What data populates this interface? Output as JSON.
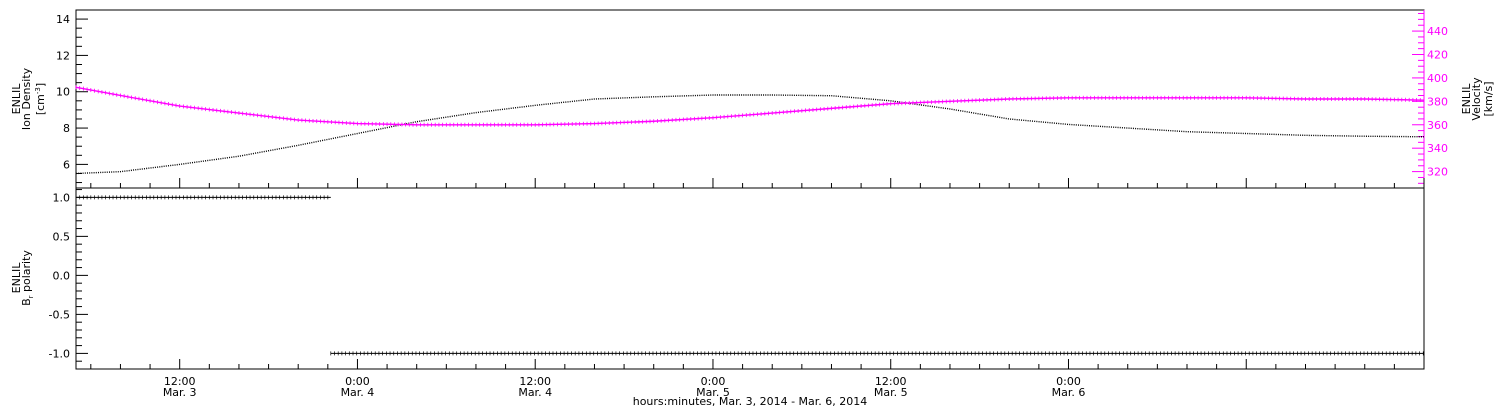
{
  "colors": {
    "frame": "#000000",
    "density_series": "#000000",
    "velocity_series": "#ff00ff",
    "polarity_series": "#000000",
    "background": "#ffffff"
  },
  "chart_data": [
    {
      "type": "line",
      "panel": "top",
      "xlabel": "hours:minutes, Mar.  3, 2014 - Mar.  6, 2014",
      "x_unit": "hours since Mar. 3, 0:00",
      "xlim": [
        5,
        96
      ],
      "x_ticks": [
        {
          "x": 12,
          "time": "12:00",
          "date": "Mar. 3"
        },
        {
          "x": 24,
          "time": "0:00",
          "date": "Mar. 4"
        },
        {
          "x": 36,
          "time": "12:00",
          "date": "Mar. 4"
        },
        {
          "x": 48,
          "time": "0:00",
          "date": "Mar. 5"
        },
        {
          "x": 60,
          "time": "12:00",
          "date": "Mar. 5"
        },
        {
          "x": 72,
          "time": "0:00",
          "date": "Mar. 6"
        }
      ],
      "left_axis": {
        "label_line1": "ENLIL",
        "label_line2": "Ion Density",
        "unit_base": "[cm",
        "unit_sup": "-3",
        "unit_end": "]",
        "ylim": [
          4.7,
          14.5
        ],
        "ticks": [
          "6",
          "8",
          "10",
          "12",
          "14"
        ],
        "tick_values": [
          6,
          8,
          10,
          12,
          14
        ]
      },
      "right_axis": {
        "label_line1": "ENLIL",
        "label_line2": "Velocity",
        "unit": "[km/s]",
        "ylim": [
          306,
          458
        ],
        "ticks": [
          "320",
          "340",
          "360",
          "380",
          "400",
          "420",
          "440"
        ],
        "tick_values": [
          320,
          340,
          360,
          380,
          400,
          420,
          440
        ]
      },
      "series": [
        {
          "axis": "left",
          "x": [
            5,
            8,
            12,
            16,
            20,
            24,
            28,
            32,
            36,
            40,
            44,
            48,
            52,
            56,
            60,
            64,
            68,
            72,
            76,
            80,
            84,
            88,
            92,
            96
          ],
          "values": [
            5.5,
            5.6,
            6.0,
            6.45,
            7.05,
            7.7,
            8.35,
            8.85,
            9.25,
            9.6,
            9.72,
            9.82,
            9.82,
            9.78,
            9.5,
            9.05,
            8.5,
            8.2,
            8.0,
            7.8,
            7.7,
            7.6,
            7.55,
            7.52
          ]
        },
        {
          "axis": "right",
          "x": [
            5,
            8,
            12,
            16,
            20,
            24,
            28,
            32,
            36,
            40,
            44,
            48,
            52,
            56,
            60,
            64,
            68,
            72,
            76,
            80,
            84,
            88,
            92,
            96
          ],
          "values": [
            392,
            385,
            376,
            370,
            364,
            361,
            360,
            360,
            360,
            361,
            363,
            366,
            370,
            374,
            378,
            380,
            382,
            383,
            383,
            383,
            383,
            382,
            382,
            381
          ]
        }
      ]
    },
    {
      "type": "scatter",
      "panel": "bottom",
      "xlim": [
        5,
        96
      ],
      "y_axis": {
        "label_line1": "ENLIL",
        "label_base": "B",
        "label_sub": "r",
        "label_end": " polarity",
        "ylim": [
          -1.2,
          1.12
        ],
        "ticks": [
          "-1.0",
          "-0.5",
          "0.0",
          "0.5",
          "1.0"
        ],
        "tick_values": [
          -1.0,
          -0.5,
          0.0,
          0.5,
          1.0
        ]
      },
      "series": [
        {
          "x_start": 5,
          "x_end": 22.2,
          "value": 1.0
        },
        {
          "x_start": 22.2,
          "x_end": 96,
          "value": -1.0
        }
      ]
    }
  ]
}
